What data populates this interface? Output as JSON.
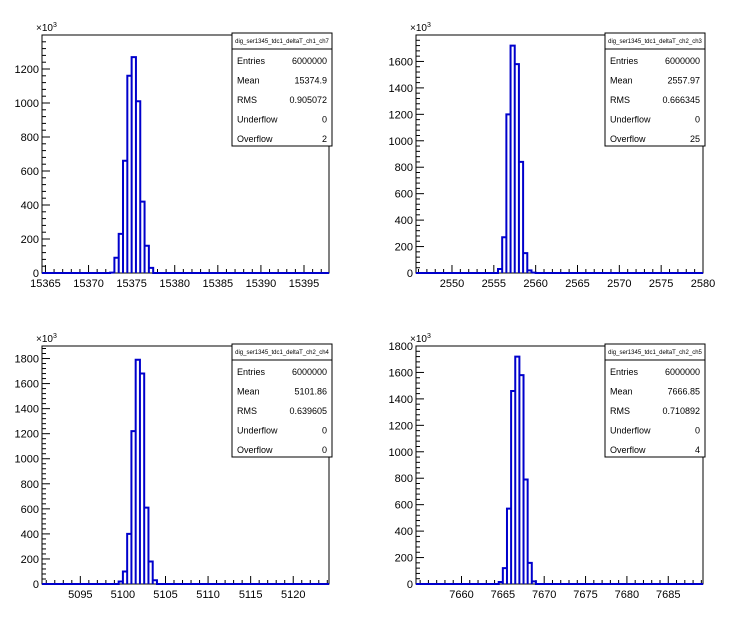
{
  "chart_data": [
    {
      "type": "histogram",
      "stats_title": "dig_ser1345_tdc1_deltaT_ch1_ch7",
      "stats": [
        {
          "label": "Entries",
          "value": "6000000"
        },
        {
          "label": "Mean",
          "value": "15374.9"
        },
        {
          "label": "RMS",
          "value": "0.905072"
        },
        {
          "label": "Underflow",
          "value": "0"
        },
        {
          "label": "Overflow",
          "value": "2"
        }
      ],
      "y_exponent": "10",
      "y_exponent_power": "3",
      "xlim": [
        15364.6,
        15397.9
      ],
      "ylim": [
        0,
        1400
      ],
      "x_ticks": [
        15365,
        15370,
        15375,
        15380,
        15385,
        15390,
        15395
      ],
      "x_tick_labels": [
        "15365",
        "15370",
        "15375",
        "15380",
        "15385",
        "15390",
        "15395"
      ],
      "y_ticks": [
        0,
        200,
        400,
        600,
        800,
        1000,
        1200
      ],
      "y_tick_labels": [
        "0",
        "200",
        "400",
        "600",
        "800",
        "1000",
        "1200"
      ],
      "bin_width": 0.5,
      "bins_start": [
        15372.5,
        15373,
        15373.5,
        15374,
        15374.5,
        15375,
        15375.5,
        15376,
        15376.5,
        15377
      ],
      "bins_values": [
        2,
        90,
        230,
        660,
        1160,
        1270,
        1010,
        420,
        160,
        30
      ]
    },
    {
      "type": "histogram",
      "stats_title": "dig_ser1345_tdc1_deltaT_ch2_ch3",
      "stats": [
        {
          "label": "Entries",
          "value": "6000000"
        },
        {
          "label": "Mean",
          "value": "2557.97"
        },
        {
          "label": "RMS",
          "value": "0.666345"
        },
        {
          "label": "Underflow",
          "value": "0"
        },
        {
          "label": "Overflow",
          "value": "25"
        }
      ],
      "y_exponent": "10",
      "y_exponent_power": "3",
      "xlim": [
        2545.7,
        2580
      ],
      "ylim": [
        0,
        1800
      ],
      "x_ticks": [
        2550,
        2555,
        2560,
        2565,
        2570,
        2575,
        2580
      ],
      "x_tick_labels": [
        "2550",
        "2555",
        "2560",
        "2565",
        "2570",
        "2575",
        "2580"
      ],
      "y_ticks": [
        0,
        200,
        400,
        600,
        800,
        1000,
        1200,
        1400,
        1600
      ],
      "y_tick_labels": [
        "0",
        "200",
        "400",
        "600",
        "800",
        "1000",
        "1200",
        "1400",
        "1600"
      ],
      "bin_width": 0.5,
      "bins_start": [
        2555.5,
        2556,
        2556.5,
        2557,
        2557.5,
        2558,
        2558.5,
        2559,
        2559.5
      ],
      "bins_values": [
        30,
        270,
        1200,
        1720,
        1580,
        840,
        150,
        20,
        3
      ]
    },
    {
      "type": "histogram",
      "stats_title": "dig_ser1345_tdc1_deltaT_ch2_ch4",
      "stats": [
        {
          "label": "Entries",
          "value": "6000000"
        },
        {
          "label": "Mean",
          "value": "5101.86"
        },
        {
          "label": "RMS",
          "value": "0.639605"
        },
        {
          "label": "Underflow",
          "value": "0"
        },
        {
          "label": "Overflow",
          "value": "0"
        }
      ],
      "y_exponent": "10",
      "y_exponent_power": "3",
      "xlim": [
        5090.5,
        5124.2
      ],
      "ylim": [
        0,
        1900
      ],
      "x_ticks": [
        5095,
        5100,
        5105,
        5110,
        5115,
        5120
      ],
      "x_tick_labels": [
        "5095",
        "5100",
        "5105",
        "5110",
        "5115",
        "5120"
      ],
      "y_ticks": [
        0,
        200,
        400,
        600,
        800,
        1000,
        1200,
        1400,
        1600,
        1800
      ],
      "y_tick_labels": [
        "0",
        "200",
        "400",
        "600",
        "800",
        "1000",
        "1200",
        "1400",
        "1600",
        "1800"
      ],
      "bin_width": 0.5,
      "bins_start": [
        5099.5,
        5100,
        5100.5,
        5101,
        5101.5,
        5102,
        5102.5,
        5103
      ],
      "bins_values": [
        20,
        100,
        400,
        1220,
        1790,
        1680,
        610,
        180
      ],
      "extra_bins": [
        {
          "start": 5103.5,
          "value": 30
        }
      ]
    },
    {
      "type": "histogram",
      "stats_title": "dig_ser1345_tdc1_deltaT_ch2_ch5",
      "stats": [
        {
          "label": "Entries",
          "value": "6000000"
        },
        {
          "label": "Mean",
          "value": "7666.85"
        },
        {
          "label": "RMS",
          "value": "0.710892"
        },
        {
          "label": "Underflow",
          "value": "0"
        },
        {
          "label": "Overflow",
          "value": "4"
        }
      ],
      "y_exponent": "10",
      "y_exponent_power": "3",
      "xlim": [
        7654.5,
        7689.2
      ],
      "ylim": [
        0,
        1800
      ],
      "x_ticks": [
        7660,
        7665,
        7670,
        7675,
        7680,
        7685
      ],
      "x_tick_labels": [
        "7660",
        "7665",
        "7670",
        "7675",
        "7680",
        "7685"
      ],
      "y_ticks": [
        0,
        200,
        400,
        600,
        800,
        1000,
        1200,
        1400,
        1600,
        1800
      ],
      "y_tick_labels": [
        "0",
        "200",
        "400",
        "600",
        "800",
        "1000",
        "1200",
        "1400",
        "1600",
        "1800"
      ],
      "bin_width": 0.5,
      "bins_start": [
        7664.5,
        7665,
        7665.5,
        7666,
        7666.5,
        7667,
        7667.5,
        7668,
        7668.5
      ],
      "bins_values": [
        15,
        120,
        570,
        1460,
        1720,
        1580,
        790,
        160,
        20
      ]
    }
  ],
  "colors": {
    "histogram_line": "#0000cc",
    "axis": "#000000",
    "background": "#ffffff"
  }
}
